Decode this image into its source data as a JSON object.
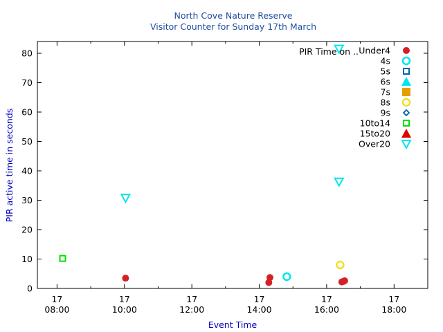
{
  "chart_data": {
    "type": "scatter",
    "title": "North Cove Nature Reserve",
    "subtitle": "Visitor Counter for Sunday 17th March",
    "xlabel": "Event Time",
    "ylabel": "PIR active time in seconds",
    "xlim": [
      "07:25",
      "19:00"
    ],
    "ylim": [
      0,
      84
    ],
    "x_ticks": [
      {
        "time": "08:00",
        "day": "17",
        "clock": "08:00"
      },
      {
        "time": "10:00",
        "day": "17",
        "clock": "10:00"
      },
      {
        "time": "12:00",
        "day": "17",
        "clock": "12:00"
      },
      {
        "time": "14:00",
        "day": "17",
        "clock": "14:00"
      },
      {
        "time": "16:00",
        "day": "17",
        "clock": "16:00"
      },
      {
        "time": "18:00",
        "day": "17",
        "clock": "18:00"
      }
    ],
    "y_ticks": [
      "0",
      "10",
      "20",
      "30",
      "40",
      "50",
      "60",
      "70",
      "80"
    ],
    "title_color": "#1f4fa0",
    "label_color": "#0000c0",
    "grid": false,
    "legend_title": "PIR Time on ..",
    "legend_position": "top-right",
    "series": [
      {
        "name": "Under4",
        "marker": "filled-circle",
        "color": "#d62028",
        "points": [
          [
            "10:02",
            3.5
          ],
          [
            "14:17",
            2.0
          ],
          [
            "14:19",
            3.7
          ],
          [
            "16:27",
            2.2
          ],
          [
            "16:30",
            2.4
          ],
          [
            "16:32",
            2.6
          ]
        ]
      },
      {
        "name": "4s",
        "marker": "open-circle",
        "color": "#00e5ee",
        "points": [
          [
            "14:49",
            4.0
          ]
        ]
      },
      {
        "name": "5s",
        "marker": "open-square",
        "color": "#0060ad",
        "points": []
      },
      {
        "name": "6s",
        "marker": "filled-triangle-up",
        "color": "#00e5ee",
        "points": []
      },
      {
        "name": "7s",
        "marker": "filled-square",
        "color": "#e69f00",
        "points": []
      },
      {
        "name": "8s",
        "marker": "open-circle",
        "color": "#f0e020",
        "points": [
          [
            "16:24",
            8.0
          ]
        ]
      },
      {
        "name": "9s",
        "marker": "open-diamond",
        "color": "#0060ad",
        "points": []
      },
      {
        "name": "10to14",
        "marker": "open-square",
        "color": "#00e000",
        "points": [
          [
            "08:10",
            10.2
          ]
        ]
      },
      {
        "name": "15to20",
        "marker": "filled-triangle-up",
        "color": "#e00000",
        "points": []
      },
      {
        "name": "Over20",
        "marker": "open-triangle-down",
        "color": "#00e5ee",
        "points": [
          [
            "10:02",
            30.8
          ],
          [
            "16:22",
            36.3
          ],
          [
            "16:22",
            81.5
          ]
        ]
      }
    ]
  }
}
